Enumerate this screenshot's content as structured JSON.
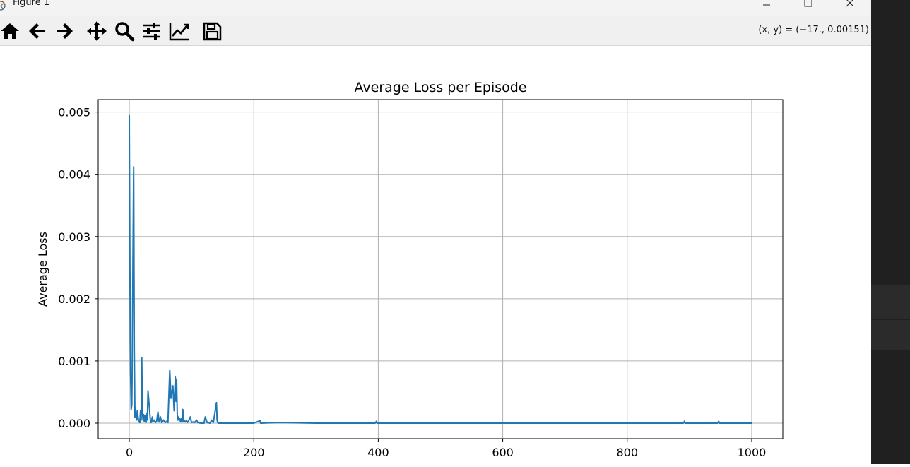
{
  "window": {
    "title": "Figure 1",
    "coords_readout": "(x, y) = (−17., 0.00151)"
  },
  "toolbar": {
    "buttons": [
      {
        "name": "home-button",
        "icon": "home-icon"
      },
      {
        "name": "back-button",
        "icon": "arrow-left-icon"
      },
      {
        "name": "forward-button",
        "icon": "arrow-right-icon"
      },
      {
        "name": "pan-button",
        "icon": "move-icon"
      },
      {
        "name": "zoom-button",
        "icon": "search-icon"
      },
      {
        "name": "configure-subplots-button",
        "icon": "sliders-icon"
      },
      {
        "name": "edit-axis-button",
        "icon": "line-chart-icon"
      },
      {
        "name": "save-button",
        "icon": "floppy-disk-icon"
      }
    ]
  },
  "colors": {
    "line": "#1f77b4",
    "grid": "#b0b0b0",
    "toolbar_bg": "#f0f0f0"
  },
  "chart_data": {
    "type": "line",
    "title": "Average Loss per Episode",
    "xlabel": "",
    "ylabel": "Average Loss",
    "xlim": [
      -50,
      1050
    ],
    "ylim": [
      -0.00025,
      0.0052
    ],
    "xticks": [
      0,
      200,
      400,
      600,
      800,
      1000
    ],
    "xtick_labels": [
      "0",
      "200",
      "400",
      "600",
      "800",
      "1000"
    ],
    "yticks": [
      0,
      0.001,
      0.002,
      0.003,
      0.004,
      0.005
    ],
    "ytick_labels": [
      "0.000",
      "0.001",
      "0.002",
      "0.003",
      "0.004",
      "0.005"
    ],
    "grid": true,
    "series": [
      {
        "x": [
          0,
          1,
          2,
          3,
          4,
          5,
          6,
          7,
          8,
          9,
          10,
          11,
          12,
          13,
          14,
          15,
          16,
          17,
          18,
          19,
          20,
          21,
          22,
          23,
          24,
          25,
          26,
          27,
          28,
          29,
          30,
          32,
          34,
          35,
          36,
          37,
          38,
          40,
          42,
          44,
          46,
          48,
          50,
          52,
          55,
          57,
          58,
          60,
          62,
          65,
          67,
          70,
          72,
          74,
          75,
          76,
          77,
          78,
          79,
          80,
          81,
          82,
          83,
          84,
          85,
          86,
          87,
          88,
          90,
          92,
          93,
          95,
          98,
          100,
          103,
          105,
          108,
          110,
          115,
          120,
          122,
          125,
          130,
          132,
          135,
          140,
          141,
          142,
          143,
          145,
          150,
          200,
          210,
          211,
          212,
          240,
          300,
          395,
          397,
          398,
          500,
          700,
          820,
          890,
          892,
          893,
          945,
          947,
          948,
          1000
        ],
        "y": [
          0.00495,
          0.0025,
          0.0008,
          0.00022,
          0.0003,
          0.0012,
          0.0028,
          0.00412,
          0.0012,
          0.0001,
          0.00025,
          0.0001,
          5e-05,
          0.0002,
          0.0001,
          2e-05,
          5e-05,
          1e-05,
          0.0002,
          5e-05,
          0.00105,
          0.0002,
          5e-05,
          0.00014,
          3e-05,
          0.00012,
          2e-05,
          1e-05,
          0.00015,
          5e-05,
          0.00052,
          0.00028,
          3e-05,
          1e-05,
          5e-05,
          0.0001,
          2e-05,
          5e-05,
          1e-05,
          3e-05,
          0.00018,
          2e-05,
          0.0001,
          1e-05,
          5e-05,
          2e-05,
          1e-05,
          3e-05,
          1e-05,
          0.00085,
          0.0004,
          0.0006,
          0.0002,
          0.00075,
          0.00035,
          0.0007,
          0.00015,
          5e-05,
          0.0001,
          5e-05,
          8e-05,
          3e-05,
          2e-05,
          8e-05,
          2e-05,
          0.00022,
          3e-05,
          5e-05,
          2e-05,
          4e-05,
          1e-05,
          3e-05,
          0.0001,
          1e-05,
          2e-05,
          1e-05,
          5e-05,
          1e-05,
          0.0,
          0.0,
          0.0001,
          1e-05,
          0.0,
          5e-05,
          1e-05,
          0.00033,
          5e-05,
          1e-05,
          0.0,
          0.0,
          0.0,
          0.0,
          4e-05,
          0.0,
          0.0,
          1e-05,
          0.0,
          0.0,
          3e-05,
          0.0,
          0.0,
          0.0,
          0.0,
          0.0,
          3e-05,
          0.0,
          0.0,
          3e-05,
          0.0,
          0.0
        ]
      }
    ]
  }
}
